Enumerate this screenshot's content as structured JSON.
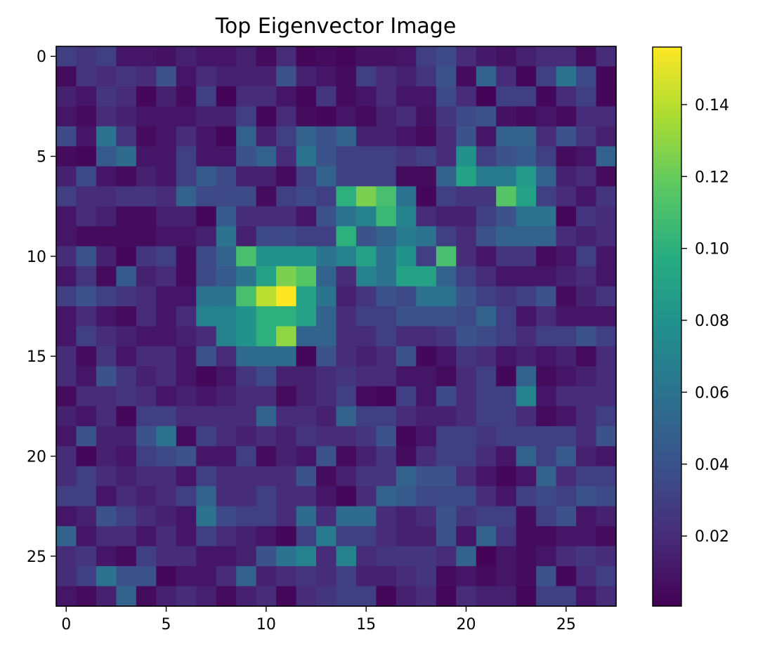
{
  "chart_data": {
    "type": "heatmap",
    "title": "Top Eigenvector Image",
    "xlabel": "",
    "ylabel": "",
    "colormap": "viridis",
    "grid": false,
    "rows": 28,
    "cols": 28,
    "xlim": [
      -0.5,
      27.5
    ],
    "ylim": [
      27.5,
      -0.5
    ],
    "xticks": [
      0,
      5,
      10,
      15,
      20,
      25
    ],
    "yticks": [
      0,
      5,
      10,
      15,
      20,
      25
    ],
    "color_range": [
      0.0005,
      0.156
    ],
    "colorbar_ticks": [
      0.02,
      0.04,
      0.06,
      0.08,
      0.1,
      0.12,
      0.14
    ],
    "colorbar_tick_labels": [
      "0.02",
      "0.04",
      "0.06",
      "0.08",
      "0.10",
      "0.12",
      "0.14"
    ],
    "values": [
      [
        0.03,
        0.025,
        0.03,
        0.01,
        0.01,
        0.008,
        0.015,
        0.01,
        0.01,
        0.015,
        0.005,
        0.02,
        0.003,
        0.005,
        0.003,
        0.008,
        0.008,
        0.01,
        0.03,
        0.035,
        0.02,
        0.012,
        0.008,
        0.015,
        0.02,
        0.02,
        0.005,
        0.02
      ],
      [
        0.005,
        0.025,
        0.02,
        0.025,
        0.02,
        0.04,
        0.01,
        0.02,
        0.015,
        0.015,
        0.015,
        0.04,
        0.015,
        0.01,
        0.005,
        0.03,
        0.02,
        0.015,
        0.025,
        0.04,
        0.005,
        0.05,
        0.02,
        0.003,
        0.03,
        0.06,
        0.035,
        0.003
      ],
      [
        0.015,
        0.01,
        0.025,
        0.02,
        0.003,
        0.015,
        0.005,
        0.03,
        0.002,
        0.02,
        0.02,
        0.01,
        0.003,
        0.025,
        0.005,
        0.01,
        0.02,
        0.01,
        0.01,
        0.035,
        0.02,
        0.002,
        0.03,
        0.03,
        0.003,
        0.02,
        0.03,
        0.003
      ],
      [
        0.01,
        0.005,
        0.02,
        0.015,
        0.01,
        0.01,
        0.01,
        0.015,
        0.015,
        0.03,
        0.003,
        0.02,
        0.005,
        0.003,
        0.01,
        0.005,
        0.015,
        0.02,
        0.008,
        0.025,
        0.035,
        0.04,
        0.008,
        0.005,
        0.01,
        0.005,
        0.02,
        0.02
      ],
      [
        0.035,
        0.01,
        0.06,
        0.025,
        0.005,
        0.01,
        0.02,
        0.01,
        0.003,
        0.05,
        0.015,
        0.03,
        0.05,
        0.04,
        0.05,
        0.015,
        0.015,
        0.01,
        0.005,
        0.02,
        0.04,
        0.01,
        0.05,
        0.05,
        0.02,
        0.04,
        0.025,
        0.015
      ],
      [
        0.005,
        0.003,
        0.045,
        0.055,
        0.01,
        0.01,
        0.03,
        0.01,
        0.01,
        0.04,
        0.05,
        0.02,
        0.06,
        0.04,
        0.03,
        0.03,
        0.03,
        0.025,
        0.03,
        0.02,
        0.08,
        0.03,
        0.04,
        0.045,
        0.03,
        0.005,
        0.01,
        0.05
      ],
      [
        0.015,
        0.035,
        0.01,
        0.005,
        0.015,
        0.01,
        0.03,
        0.045,
        0.035,
        0.015,
        0.015,
        0.005,
        0.03,
        0.05,
        0.03,
        0.03,
        0.03,
        0.005,
        0.005,
        0.05,
        0.09,
        0.065,
        0.065,
        0.085,
        0.05,
        0.015,
        0.02,
        0.005
      ],
      [
        0.03,
        0.02,
        0.02,
        0.025,
        0.025,
        0.02,
        0.05,
        0.035,
        0.035,
        0.035,
        0.005,
        0.03,
        0.035,
        0.03,
        0.1,
        0.125,
        0.11,
        0.06,
        0.003,
        0.03,
        0.025,
        0.025,
        0.115,
        0.09,
        0.03,
        0.02,
        0.01,
        0.025
      ],
      [
        0.01,
        0.02,
        0.015,
        0.005,
        0.005,
        0.015,
        0.015,
        0.003,
        0.045,
        0.02,
        0.02,
        0.02,
        0.01,
        0.04,
        0.06,
        0.07,
        0.105,
        0.07,
        0.02,
        0.015,
        0.015,
        0.03,
        0.04,
        0.06,
        0.06,
        0.003,
        0.025,
        0.02
      ],
      [
        0.01,
        0.005,
        0.005,
        0.005,
        0.005,
        0.01,
        0.01,
        0.015,
        0.06,
        0.015,
        0.035,
        0.035,
        0.03,
        0.03,
        0.1,
        0.04,
        0.05,
        0.065,
        0.06,
        0.03,
        0.02,
        0.04,
        0.05,
        0.05,
        0.05,
        0.02,
        0.015,
        0.02
      ],
      [
        0.02,
        0.04,
        0.015,
        0.003,
        0.025,
        0.03,
        0.005,
        0.035,
        0.05,
        0.11,
        0.08,
        0.08,
        0.08,
        0.06,
        0.07,
        0.09,
        0.06,
        0.08,
        0.03,
        0.11,
        0.02,
        0.01,
        0.025,
        0.025,
        0.005,
        0.01,
        0.03,
        0.01
      ],
      [
        0.01,
        0.025,
        0.005,
        0.045,
        0.015,
        0.02,
        0.005,
        0.035,
        0.045,
        0.06,
        0.09,
        0.125,
        0.115,
        0.05,
        0.02,
        0.07,
        0.06,
        0.09,
        0.09,
        0.05,
        0.03,
        0.02,
        0.01,
        0.01,
        0.01,
        0.015,
        0.02,
        0.01
      ],
      [
        0.03,
        0.04,
        0.03,
        0.025,
        0.02,
        0.01,
        0.01,
        0.06,
        0.06,
        0.11,
        0.14,
        0.156,
        0.09,
        0.06,
        0.015,
        0.025,
        0.04,
        0.035,
        0.06,
        0.06,
        0.04,
        0.03,
        0.025,
        0.03,
        0.04,
        0.005,
        0.015,
        0.025
      ],
      [
        0.01,
        0.02,
        0.01,
        0.005,
        0.02,
        0.01,
        0.02,
        0.07,
        0.07,
        0.08,
        0.1,
        0.1,
        0.09,
        0.05,
        0.02,
        0.03,
        0.03,
        0.04,
        0.04,
        0.04,
        0.035,
        0.05,
        0.03,
        0.01,
        0.02,
        0.01,
        0.01,
        0.01
      ],
      [
        0.01,
        0.03,
        0.02,
        0.015,
        0.01,
        0.01,
        0.015,
        0.02,
        0.07,
        0.08,
        0.1,
        0.13,
        0.05,
        0.05,
        0.02,
        0.02,
        0.03,
        0.02,
        0.02,
        0.025,
        0.04,
        0.035,
        0.03,
        0.02,
        0.03,
        0.03,
        0.04,
        0.03
      ],
      [
        0.02,
        0.005,
        0.025,
        0.01,
        0.02,
        0.02,
        0.01,
        0.04,
        0.02,
        0.055,
        0.055,
        0.055,
        0.003,
        0.04,
        0.02,
        0.015,
        0.02,
        0.04,
        0.003,
        0.01,
        0.025,
        0.02,
        0.01,
        0.015,
        0.01,
        0.015,
        0.005,
        0.02
      ],
      [
        0.02,
        0.01,
        0.04,
        0.025,
        0.015,
        0.02,
        0.01,
        0.003,
        0.01,
        0.025,
        0.035,
        0.015,
        0.015,
        0.02,
        0.025,
        0.02,
        0.02,
        0.01,
        0.01,
        0.005,
        0.02,
        0.03,
        0.003,
        0.05,
        0.005,
        0.01,
        0.015,
        0.02
      ],
      [
        0.005,
        0.02,
        0.02,
        0.025,
        0.02,
        0.01,
        0.015,
        0.01,
        0.015,
        0.02,
        0.02,
        0.005,
        0.015,
        0.02,
        0.03,
        0.005,
        0.003,
        0.03,
        0.01,
        0.035,
        0.02,
        0.03,
        0.03,
        0.07,
        0.01,
        0.02,
        0.02,
        0.02
      ],
      [
        0.015,
        0.01,
        0.02,
        0.003,
        0.03,
        0.03,
        0.02,
        0.02,
        0.02,
        0.02,
        0.05,
        0.02,
        0.02,
        0.015,
        0.05,
        0.03,
        0.03,
        0.02,
        0.015,
        0.015,
        0.02,
        0.03,
        0.03,
        0.02,
        0.005,
        0.01,
        0.02,
        0.03
      ],
      [
        0.01,
        0.04,
        0.015,
        0.015,
        0.04,
        0.06,
        0.005,
        0.03,
        0.02,
        0.015,
        0.02,
        0.015,
        0.025,
        0.02,
        0.02,
        0.025,
        0.04,
        0.003,
        0.01,
        0.03,
        0.03,
        0.025,
        0.03,
        0.03,
        0.03,
        0.03,
        0.02,
        0.04
      ],
      [
        0.02,
        0.003,
        0.015,
        0.01,
        0.03,
        0.035,
        0.04,
        0.01,
        0.01,
        0.03,
        0.005,
        0.015,
        0.01,
        0.04,
        0.005,
        0.015,
        0.025,
        0.005,
        0.02,
        0.03,
        0.03,
        0.02,
        0.01,
        0.05,
        0.03,
        0.045,
        0.015,
        0.01
      ],
      [
        0.02,
        0.03,
        0.02,
        0.015,
        0.02,
        0.02,
        0.01,
        0.03,
        0.02,
        0.02,
        0.02,
        0.02,
        0.04,
        0.005,
        0.015,
        0.025,
        0.025,
        0.05,
        0.04,
        0.04,
        0.02,
        0.01,
        0.003,
        0.01,
        0.05,
        0.02,
        0.03,
        0.03
      ],
      [
        0.03,
        0.03,
        0.01,
        0.02,
        0.015,
        0.02,
        0.03,
        0.05,
        0.02,
        0.02,
        0.03,
        0.02,
        0.02,
        0.01,
        0.003,
        0.02,
        0.05,
        0.045,
        0.035,
        0.035,
        0.035,
        0.02,
        0.01,
        0.03,
        0.035,
        0.03,
        0.04,
        0.035
      ],
      [
        0.01,
        0.015,
        0.04,
        0.03,
        0.02,
        0.015,
        0.01,
        0.06,
        0.035,
        0.03,
        0.03,
        0.02,
        0.055,
        0.02,
        0.055,
        0.055,
        0.02,
        0.015,
        0.02,
        0.04,
        0.025,
        0.03,
        0.03,
        0.005,
        0.03,
        0.04,
        0.01,
        0.015
      ],
      [
        0.05,
        0.01,
        0.02,
        0.02,
        0.01,
        0.02,
        0.01,
        0.03,
        0.02,
        0.015,
        0.01,
        0.003,
        0.03,
        0.065,
        0.03,
        0.03,
        0.02,
        0.015,
        0.015,
        0.04,
        0.01,
        0.05,
        0.025,
        0.005,
        0.005,
        0.01,
        0.01,
        0.005
      ],
      [
        0.02,
        0.025,
        0.01,
        0.005,
        0.03,
        0.02,
        0.02,
        0.01,
        0.01,
        0.015,
        0.04,
        0.06,
        0.07,
        0.02,
        0.07,
        0.02,
        0.025,
        0.025,
        0.025,
        0.02,
        0.05,
        0.002,
        0.01,
        0.005,
        0.01,
        0.02,
        0.025,
        0.02
      ],
      [
        0.02,
        0.03,
        0.06,
        0.04,
        0.04,
        0.003,
        0.01,
        0.01,
        0.02,
        0.05,
        0.015,
        0.02,
        0.025,
        0.02,
        0.03,
        0.015,
        0.015,
        0.02,
        0.025,
        0.005,
        0.01,
        0.005,
        0.01,
        0.005,
        0.04,
        0.003,
        0.02,
        0.03
      ],
      [
        0.01,
        0.005,
        0.015,
        0.05,
        0.005,
        0.015,
        0.02,
        0.015,
        0.005,
        0.015,
        0.02,
        0.003,
        0.02,
        0.025,
        0.03,
        0.03,
        0.003,
        0.015,
        0.02,
        0.003,
        0.02,
        0.015,
        0.015,
        0.003,
        0.03,
        0.03,
        0.01,
        0.02
      ]
    ]
  }
}
